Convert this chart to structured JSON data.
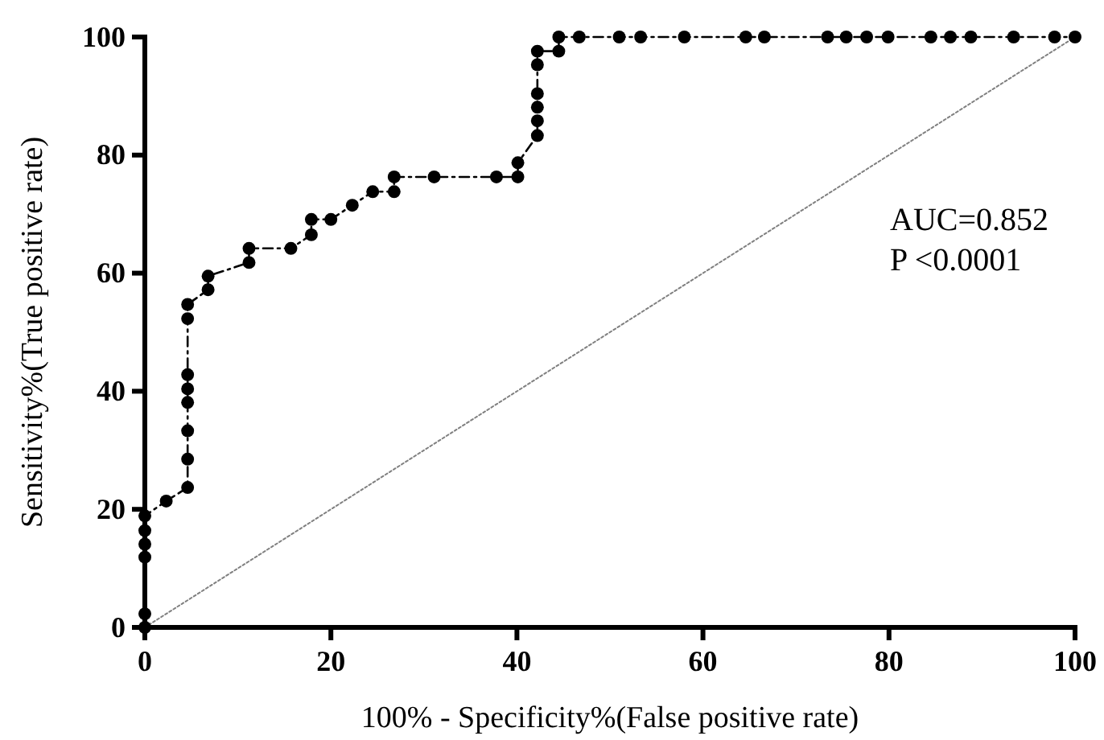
{
  "chart_data": {
    "type": "line",
    "xlabel": "100% - Specificity%(False positive rate)",
    "ylabel": "Sensitivity%(True positive rate)",
    "xlim": [
      0,
      100
    ],
    "ylim": [
      0,
      100
    ],
    "xticks": [
      0,
      20,
      40,
      60,
      80,
      100
    ],
    "yticks": [
      0,
      20,
      40,
      60,
      80,
      100
    ],
    "grid": false,
    "annotations": [
      "AUC=0.852",
      "P <0.0001"
    ],
    "series": [
      {
        "marker": "circle",
        "line_style": "dashed",
        "color": "#000000",
        "x": [
          0,
          0,
          0,
          0,
          0,
          0,
          2.3,
          4.6,
          4.6,
          4.6,
          4.6,
          4.6,
          4.6,
          4.6,
          4.6,
          6.8,
          6.8,
          11.2,
          11.2,
          15.7,
          17.9,
          17.9,
          20,
          22.3,
          24.5,
          26.8,
          26.8,
          31.1,
          37.8,
          40.1,
          40.1,
          42.2,
          42.2,
          42.2,
          42.2,
          42.2,
          42.2,
          44.5,
          44.5,
          46.7,
          51,
          53.3,
          58,
          64.6,
          66.6,
          73.4,
          75.4,
          77.6,
          79.9,
          84.5,
          86.6,
          88.8,
          93.4,
          97.8,
          100
        ],
        "values": [
          0,
          2.3,
          11.9,
          14.1,
          16.4,
          18.9,
          21.4,
          23.7,
          28.5,
          33.3,
          38.1,
          40.4,
          42.8,
          52.3,
          54.7,
          57.2,
          59.5,
          61.8,
          64.2,
          64.2,
          66.5,
          69.1,
          69.1,
          71.5,
          73.8,
          73.8,
          76.3,
          76.3,
          76.3,
          76.3,
          78.7,
          83.3,
          85.8,
          88.1,
          90.4,
          95.3,
          97.6,
          97.6,
          100,
          100,
          100,
          100,
          100,
          100,
          100,
          100,
          100,
          100,
          100,
          100,
          100,
          100,
          100,
          100,
          100
        ]
      },
      {
        "marker": "none",
        "line_style": "dotted",
        "color": "#808080",
        "x": [
          0,
          100
        ],
        "values": [
          0,
          100
        ]
      }
    ]
  }
}
